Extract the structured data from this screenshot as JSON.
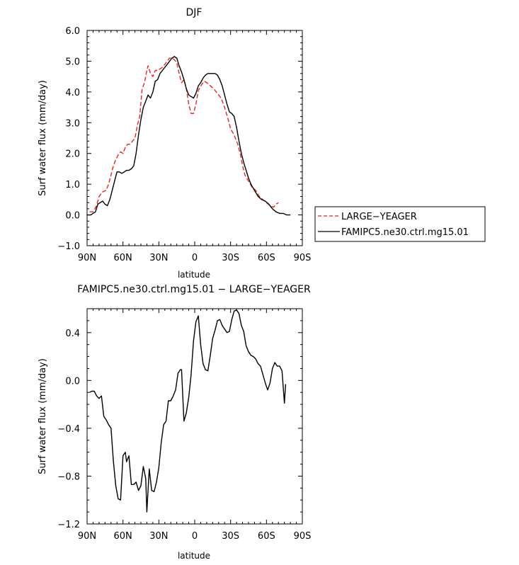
{
  "chart_data": [
    {
      "type": "line",
      "title": "DJF",
      "xlabel": "latitude",
      "ylabel": "Surf water flux (mm/day)",
      "xlim": [
        90,
        -90
      ],
      "ylim": [
        -1.0,
        6.0
      ],
      "x_ticks": [
        90,
        60,
        30,
        0,
        -30,
        -60,
        -90
      ],
      "x_tick_labels": [
        "90N",
        "60N",
        "30N",
        "0",
        "30S",
        "60S",
        "90S"
      ],
      "y_ticks": [
        -1.0,
        0.0,
        1.0,
        2.0,
        3.0,
        4.0,
        5.0,
        6.0
      ],
      "y_tick_labels": [
        "−1.0",
        "0.0",
        "1.0",
        "2.0",
        "3.0",
        "4.0",
        "5.0",
        "6.0"
      ],
      "legend_position": "right",
      "series": [
        {
          "name": "LARGE−YEAGER",
          "color": "#e8251e",
          "dash": "dashed",
          "points": [
            [
              88,
              0.1
            ],
            [
              85,
              0.1
            ],
            [
              82,
              0.3
            ],
            [
              80,
              0.6
            ],
            [
              77,
              0.75
            ],
            [
              74,
              0.8
            ],
            [
              72,
              1.0
            ],
            [
              70,
              1.3
            ],
            [
              68,
              1.6
            ],
            [
              66,
              1.8
            ],
            [
              64,
              1.95
            ],
            [
              62,
              2.05
            ],
            [
              60,
              2.0
            ],
            [
              58,
              2.2
            ],
            [
              56,
              2.3
            ],
            [
              54,
              2.3
            ],
            [
              52,
              2.4
            ],
            [
              50,
              2.5
            ],
            [
              48,
              2.9
            ],
            [
              46,
              3.2
            ],
            [
              44,
              4.1
            ],
            [
              42,
              4.3
            ],
            [
              40,
              4.7
            ],
            [
              39,
              4.85
            ],
            [
              37,
              4.6
            ],
            [
              35,
              4.5
            ],
            [
              33,
              4.7
            ],
            [
              31,
              4.7
            ],
            [
              29,
              4.75
            ],
            [
              27,
              4.8
            ],
            [
              25,
              4.9
            ],
            [
              23,
              5.0
            ],
            [
              21,
              5.1
            ],
            [
              19,
              5.1
            ],
            [
              17,
              5.05
            ],
            [
              15,
              4.95
            ],
            [
              13,
              4.6
            ],
            [
              11,
              4.3
            ],
            [
              9,
              4.4
            ],
            [
              7,
              4.1
            ],
            [
              5,
              3.6
            ],
            [
              3,
              3.3
            ],
            [
              1,
              3.3
            ],
            [
              -1,
              3.6
            ],
            [
              -3,
              4.05
            ],
            [
              -6,
              4.25
            ],
            [
              -8,
              4.35
            ],
            [
              -10,
              4.3
            ],
            [
              -13,
              4.2
            ],
            [
              -16,
              4.1
            ],
            [
              -19,
              3.95
            ],
            [
              -22,
              3.8
            ],
            [
              -25,
              3.5
            ],
            [
              -28,
              3.1
            ],
            [
              -30,
              2.8
            ],
            [
              -33,
              2.6
            ],
            [
              -36,
              2.3
            ],
            [
              -38,
              2.0
            ],
            [
              -40,
              1.6
            ],
            [
              -42,
              1.3
            ],
            [
              -45,
              1.1
            ],
            [
              -48,
              0.9
            ],
            [
              -51,
              0.8
            ],
            [
              -54,
              0.6
            ],
            [
              -57,
              0.5
            ],
            [
              -60,
              0.4
            ],
            [
              -63,
              0.3
            ],
            [
              -66,
              0.25
            ],
            [
              -68,
              0.35
            ],
            [
              -70,
              0.4
            ]
          ]
        },
        {
          "name": "FAMIPC5.ne30.ctrl.mg15.01",
          "color": "#000000",
          "dash": "solid",
          "points": [
            [
              90,
              0.0
            ],
            [
              87,
              0.0
            ],
            [
              85,
              0.05
            ],
            [
              83,
              0.1
            ],
            [
              81,
              0.35
            ],
            [
              79,
              0.4
            ],
            [
              77,
              0.45
            ],
            [
              75,
              0.35
            ],
            [
              73,
              0.3
            ],
            [
              71,
              0.5
            ],
            [
              69,
              0.8
            ],
            [
              67,
              1.1
            ],
            [
              65,
              1.4
            ],
            [
              63,
              1.4
            ],
            [
              61,
              1.35
            ],
            [
              59,
              1.4
            ],
            [
              57,
              1.45
            ],
            [
              55,
              1.45
            ],
            [
              53,
              1.5
            ],
            [
              51,
              1.6
            ],
            [
              49,
              2.0
            ],
            [
              47,
              2.6
            ],
            [
              45,
              3.1
            ],
            [
              43,
              3.5
            ],
            [
              41,
              3.7
            ],
            [
              39,
              3.9
            ],
            [
              37,
              3.8
            ],
            [
              35,
              4.0
            ],
            [
              33,
              4.35
            ],
            [
              31,
              4.4
            ],
            [
              29,
              4.6
            ],
            [
              27,
              4.7
            ],
            [
              25,
              4.8
            ],
            [
              23,
              4.9
            ],
            [
              21,
              5.0
            ],
            [
              19,
              5.1
            ],
            [
              17,
              5.15
            ],
            [
              15,
              5.1
            ],
            [
              13,
              4.85
            ],
            [
              11,
              4.65
            ],
            [
              9,
              4.4
            ],
            [
              7,
              4.1
            ],
            [
              5,
              3.9
            ],
            [
              3,
              3.85
            ],
            [
              1,
              3.8
            ],
            [
              -1,
              3.95
            ],
            [
              -3,
              4.2
            ],
            [
              -5,
              4.3
            ],
            [
              -7,
              4.45
            ],
            [
              -9,
              4.55
            ],
            [
              -11,
              4.6
            ],
            [
              -13,
              4.6
            ],
            [
              -15,
              4.6
            ],
            [
              -17,
              4.6
            ],
            [
              -19,
              4.55
            ],
            [
              -21,
              4.4
            ],
            [
              -23,
              4.2
            ],
            [
              -25,
              3.9
            ],
            [
              -27,
              3.6
            ],
            [
              -29,
              3.35
            ],
            [
              -31,
              3.3
            ],
            [
              -33,
              3.2
            ],
            [
              -35,
              2.85
            ],
            [
              -37,
              2.4
            ],
            [
              -39,
              2.0
            ],
            [
              -41,
              1.7
            ],
            [
              -43,
              1.45
            ],
            [
              -45,
              1.2
            ],
            [
              -47,
              1.0
            ],
            [
              -50,
              0.8
            ],
            [
              -53,
              0.6
            ],
            [
              -56,
              0.5
            ],
            [
              -59,
              0.45
            ],
            [
              -62,
              0.35
            ],
            [
              -65,
              0.2
            ],
            [
              -68,
              0.1
            ],
            [
              -71,
              0.05
            ],
            [
              -74,
              0.05
            ],
            [
              -77,
              0.0
            ],
            [
              -80,
              0.0
            ]
          ]
        }
      ]
    },
    {
      "type": "line",
      "title": "FAMIPC5.ne30.ctrl.mg15.01 − LARGE−YEAGER",
      "xlabel": "latitude",
      "ylabel": "Surf water flux (mm/day)",
      "xlim": [
        90,
        -90
      ],
      "ylim": [
        -1.2,
        0.6
      ],
      "x_ticks": [
        90,
        60,
        30,
        0,
        -30,
        -60,
        -90
      ],
      "x_tick_labels": [
        "90N",
        "60N",
        "30N",
        "0",
        "30S",
        "60S",
        "90S"
      ],
      "y_ticks": [
        -1.2,
        -0.8,
        -0.4,
        0.0,
        0.4
      ],
      "y_tick_labels": [
        "−1.2",
        "−0.8",
        "−0.4",
        "0.0",
        "0.4"
      ],
      "series": [
        {
          "color": "#000000",
          "dash": "solid",
          "points": [
            [
              88,
              -0.1
            ],
            [
              86,
              -0.09
            ],
            [
              84,
              -0.09
            ],
            [
              82,
              -0.13
            ],
            [
              80,
              -0.15
            ],
            [
              78,
              -0.13
            ],
            [
              76,
              -0.3
            ],
            [
              74,
              -0.33
            ],
            [
              72,
              -0.37
            ],
            [
              70,
              -0.4
            ],
            [
              68,
              -0.68
            ],
            [
              66,
              -0.88
            ],
            [
              64,
              -0.99
            ],
            [
              62,
              -1.0
            ],
            [
              60,
              -0.63
            ],
            [
              58,
              -0.6
            ],
            [
              57,
              -0.68
            ],
            [
              55,
              -0.63
            ],
            [
              53,
              -0.87
            ],
            [
              51,
              -0.87
            ],
            [
              49,
              -0.85
            ],
            [
              47,
              -0.92
            ],
            [
              45,
              -0.88
            ],
            [
              43,
              -0.72
            ],
            [
              41,
              -0.82
            ],
            [
              40,
              -1.1
            ],
            [
              38,
              -0.74
            ],
            [
              36,
              -0.92
            ],
            [
              34,
              -0.93
            ],
            [
              32,
              -0.85
            ],
            [
              30,
              -0.73
            ],
            [
              28,
              -0.52
            ],
            [
              26,
              -0.37
            ],
            [
              24,
              -0.34
            ],
            [
              22,
              -0.17
            ],
            [
              20,
              -0.17
            ],
            [
              18,
              -0.13
            ],
            [
              16,
              -0.08
            ],
            [
              14,
              0.06
            ],
            [
              12,
              0.09
            ],
            [
              11,
              0.09
            ],
            [
              9,
              -0.34
            ],
            [
              7,
              -0.27
            ],
            [
              5,
              -0.14
            ],
            [
              3,
              0.05
            ],
            [
              1,
              0.33
            ],
            [
              -1,
              0.49
            ],
            [
              -3,
              0.54
            ],
            [
              -5,
              0.3
            ],
            [
              -7,
              0.14
            ],
            [
              -9,
              0.09
            ],
            [
              -11,
              0.08
            ],
            [
              -13,
              0.21
            ],
            [
              -15,
              0.35
            ],
            [
              -17,
              0.42
            ],
            [
              -19,
              0.5
            ],
            [
              -21,
              0.51
            ],
            [
              -23,
              0.46
            ],
            [
              -25,
              0.43
            ],
            [
              -27,
              0.4
            ],
            [
              -29,
              0.41
            ],
            [
              -31,
              0.51
            ],
            [
              -33,
              0.58
            ],
            [
              -35,
              0.59
            ],
            [
              -37,
              0.56
            ],
            [
              -39,
              0.46
            ],
            [
              -41,
              0.41
            ],
            [
              -43,
              0.29
            ],
            [
              -45,
              0.24
            ],
            [
              -47,
              0.21
            ],
            [
              -49,
              0.2
            ],
            [
              -51,
              0.18
            ],
            [
              -53,
              0.14
            ],
            [
              -55,
              0.12
            ],
            [
              -57,
              0.05
            ],
            [
              -59,
              -0.02
            ],
            [
              -61,
              -0.08
            ],
            [
              -63,
              -0.02
            ],
            [
              -65,
              0.1
            ],
            [
              -67,
              0.15
            ],
            [
              -69,
              0.12
            ],
            [
              -71,
              0.12
            ],
            [
              -73,
              0.08
            ],
            [
              -75,
              -0.19
            ],
            [
              -76,
              -0.03
            ]
          ]
        }
      ]
    }
  ]
}
